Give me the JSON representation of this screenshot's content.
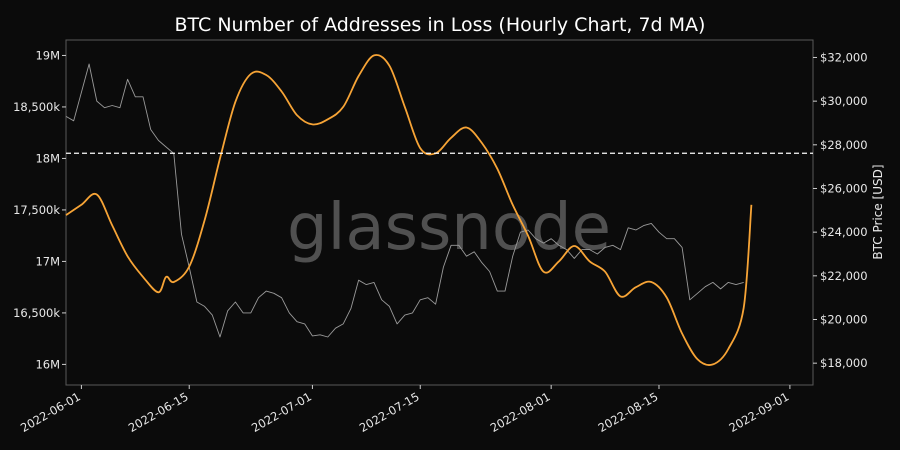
{
  "chart_data": {
    "type": "line",
    "title": "BTC Number of Addresses in Loss (Hourly Chart, 7d MA)",
    "ylabel_right": "BTC Price [USD]",
    "watermark": "glassnode",
    "xlim": [
      "2022-05-30",
      "2022-09-04"
    ],
    "ylim_left": [
      15800000,
      19150000
    ],
    "ylim_right": [
      17000,
      32800
    ],
    "x_ticks": [
      "2022-06-01",
      "2022-06-15",
      "2022-07-01",
      "2022-07-15",
      "2022-08-01",
      "2022-08-15",
      "2022-09-01"
    ],
    "y_left_ticks": [
      {
        "value": 16000000,
        "label": "16M"
      },
      {
        "value": 16500000,
        "label": "16,500k"
      },
      {
        "value": 17000000,
        "label": "17M"
      },
      {
        "value": 17500000,
        "label": "17,500k"
      },
      {
        "value": 18000000,
        "label": "18M"
      },
      {
        "value": 18500000,
        "label": "18,500k"
      },
      {
        "value": 19000000,
        "label": "19M"
      }
    ],
    "y_right_ticks": [
      {
        "value": 18000,
        "label": "$18,000"
      },
      {
        "value": 20000,
        "label": "$20,000"
      },
      {
        "value": 22000,
        "label": "$22,000"
      },
      {
        "value": 24000,
        "label": "$24,000"
      },
      {
        "value": 26000,
        "label": "$26,000"
      },
      {
        "value": 28000,
        "label": "$28,000"
      },
      {
        "value": 30000,
        "label": "$30,000"
      },
      {
        "value": 32000,
        "label": "$32,000"
      }
    ],
    "reference_line": {
      "axis": "left",
      "value": 18050000,
      "style": "dashed",
      "color": "#ffffff"
    },
    "grid": false,
    "series": [
      {
        "axis": "left",
        "color": "#f7a436",
        "x": [
          "2022-05-30",
          "2022-06-01",
          "2022-06-03",
          "2022-06-05",
          "2022-06-07",
          "2022-06-09",
          "2022-06-11",
          "2022-06-12",
          "2022-06-13",
          "2022-06-15",
          "2022-06-17",
          "2022-06-19",
          "2022-06-21",
          "2022-06-23",
          "2022-06-25",
          "2022-06-27",
          "2022-06-29",
          "2022-07-01",
          "2022-07-03",
          "2022-07-05",
          "2022-07-07",
          "2022-07-09",
          "2022-07-11",
          "2022-07-13",
          "2022-07-15",
          "2022-07-17",
          "2022-07-19",
          "2022-07-21",
          "2022-07-23",
          "2022-07-25",
          "2022-07-27",
          "2022-07-29",
          "2022-07-31",
          "2022-08-02",
          "2022-08-04",
          "2022-08-06",
          "2022-08-08",
          "2022-08-10",
          "2022-08-12",
          "2022-08-14",
          "2022-08-16",
          "2022-08-18",
          "2022-08-20",
          "2022-08-22",
          "2022-08-24",
          "2022-08-26",
          "2022-08-27"
        ],
        "values": [
          17450000,
          17550000,
          17650000,
          17350000,
          17050000,
          16850000,
          16700000,
          16850000,
          16800000,
          16950000,
          17400000,
          18000000,
          18550000,
          18820000,
          18810000,
          18650000,
          18420000,
          18330000,
          18380000,
          18500000,
          18800000,
          19000000,
          18900000,
          18500000,
          18100000,
          18050000,
          18200000,
          18300000,
          18150000,
          17900000,
          17550000,
          17250000,
          16900000,
          17000000,
          17150000,
          17000000,
          16900000,
          16660000,
          16750000,
          16800000,
          16650000,
          16300000,
          16050000,
          16000000,
          16150000,
          16550000,
          17550000
        ]
      },
      {
        "axis": "right",
        "color": "#9a9a9a",
        "x": [
          "2022-05-30",
          "2022-05-31",
          "2022-06-01",
          "2022-06-02",
          "2022-06-03",
          "2022-06-04",
          "2022-06-05",
          "2022-06-06",
          "2022-06-07",
          "2022-06-08",
          "2022-06-09",
          "2022-06-10",
          "2022-06-11",
          "2022-06-12",
          "2022-06-13",
          "2022-06-14",
          "2022-06-15",
          "2022-06-16",
          "2022-06-17",
          "2022-06-18",
          "2022-06-19",
          "2022-06-20",
          "2022-06-21",
          "2022-06-22",
          "2022-06-23",
          "2022-06-24",
          "2022-06-25",
          "2022-06-26",
          "2022-06-27",
          "2022-06-28",
          "2022-06-29",
          "2022-06-30",
          "2022-07-01",
          "2022-07-02",
          "2022-07-03",
          "2022-07-04",
          "2022-07-05",
          "2022-07-06",
          "2022-07-07",
          "2022-07-08",
          "2022-07-09",
          "2022-07-10",
          "2022-07-11",
          "2022-07-12",
          "2022-07-13",
          "2022-07-14",
          "2022-07-15",
          "2022-07-16",
          "2022-07-17",
          "2022-07-18",
          "2022-07-19",
          "2022-07-20",
          "2022-07-21",
          "2022-07-22",
          "2022-07-23",
          "2022-07-24",
          "2022-07-25",
          "2022-07-26",
          "2022-07-27",
          "2022-07-28",
          "2022-07-29",
          "2022-07-30",
          "2022-07-31",
          "2022-08-01",
          "2022-08-02",
          "2022-08-03",
          "2022-08-04",
          "2022-08-05",
          "2022-08-06",
          "2022-08-07",
          "2022-08-08",
          "2022-08-09",
          "2022-08-10",
          "2022-08-11",
          "2022-08-12",
          "2022-08-13",
          "2022-08-14",
          "2022-08-15",
          "2022-08-16",
          "2022-08-17",
          "2022-08-18",
          "2022-08-19",
          "2022-08-20",
          "2022-08-21",
          "2022-08-22",
          "2022-08-23",
          "2022-08-24",
          "2022-08-25",
          "2022-08-26"
        ],
        "values": [
          29300,
          29100,
          30400,
          31700,
          30000,
          29700,
          29800,
          29700,
          31000,
          30200,
          30200,
          28700,
          28200,
          27900,
          27600,
          23900,
          22400,
          20800,
          20600,
          20200,
          19200,
          20400,
          20800,
          20300,
          20300,
          21000,
          21300,
          21200,
          21000,
          20300,
          19900,
          19800,
          19250,
          19300,
          19200,
          19600,
          19800,
          20500,
          21800,
          21600,
          21700,
          20900,
          20600,
          19800,
          20200,
          20300,
          20900,
          21000,
          20700,
          22400,
          23400,
          23400,
          22900,
          23100,
          22600,
          22200,
          21300,
          21300,
          22900,
          24000,
          24100,
          23700,
          23500,
          23700,
          23400,
          23200,
          22800,
          23200,
          23200,
          23000,
          23300,
          23400,
          23200,
          24200,
          24100,
          24300,
          24400,
          24000,
          23700,
          23700,
          23300,
          20900,
          21200,
          21500,
          21700,
          21400,
          21700,
          21600,
          21700
        ]
      }
    ]
  }
}
